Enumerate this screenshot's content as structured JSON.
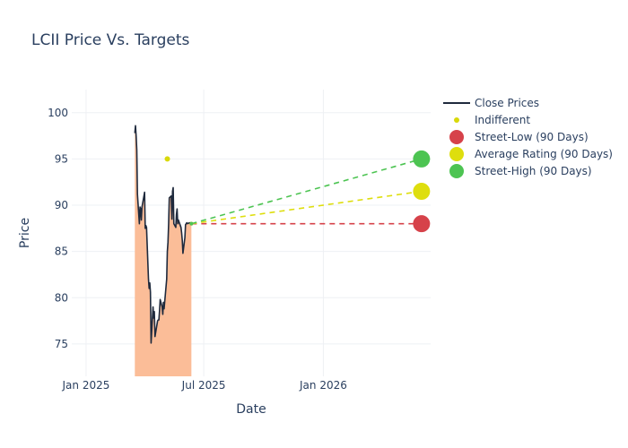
{
  "chart_data": {
    "type": "line",
    "title": "LCII Price Vs. Targets",
    "xlabel": "Date",
    "ylabel": "Price",
    "x_range": [
      "2024-12-10",
      "2026-06-15"
    ],
    "ylim": [
      71.5,
      102.5
    ],
    "x_ticks": [
      {
        "date": "2025-01-01",
        "label": "Jan 2025"
      },
      {
        "date": "2025-07-01",
        "label": "Jul 2025"
      },
      {
        "date": "2026-01-01",
        "label": "Jan 2026"
      }
    ],
    "y_ticks": [
      75,
      80,
      85,
      90,
      95,
      100
    ],
    "grid": true,
    "legend_position": "top-right",
    "close_prices": {
      "name": "Close Prices",
      "color": "#1f2a3d",
      "fill_color": "#fbbd98",
      "x": [
        "2025-03-17",
        "2025-03-18",
        "2025-03-19",
        "2025-03-20",
        "2025-03-21",
        "2025-03-24",
        "2025-03-25",
        "2025-03-26",
        "2025-03-27",
        "2025-03-28",
        "2025-03-31",
        "2025-04-01",
        "2025-04-02",
        "2025-04-03",
        "2025-04-04",
        "2025-04-07",
        "2025-04-08",
        "2025-04-09",
        "2025-04-10",
        "2025-04-11",
        "2025-04-14",
        "2025-04-15",
        "2025-04-16",
        "2025-04-17",
        "2025-04-21",
        "2025-04-22",
        "2025-04-23",
        "2025-04-24",
        "2025-04-25",
        "2025-04-28",
        "2025-04-29",
        "2025-04-30",
        "2025-05-01",
        "2025-05-02",
        "2025-05-05",
        "2025-05-06",
        "2025-05-07",
        "2025-05-08",
        "2025-05-09",
        "2025-05-12",
        "2025-05-13",
        "2025-05-14",
        "2025-05-15",
        "2025-05-16",
        "2025-05-19",
        "2025-05-20",
        "2025-05-21",
        "2025-05-22",
        "2025-05-23",
        "2025-05-27",
        "2025-05-28",
        "2025-05-29",
        "2025-05-30",
        "2025-06-02",
        "2025-06-03",
        "2025-06-04",
        "2025-06-05",
        "2025-06-06",
        "2025-06-09",
        "2025-06-10",
        "2025-06-11",
        "2025-06-12"
      ],
      "y": [
        97.8,
        98.6,
        97.5,
        96.0,
        91.2,
        88.0,
        89.8,
        89.6,
        88.4,
        89.8,
        91.0,
        91.4,
        87.5,
        87.8,
        87.6,
        82.0,
        81.0,
        81.6,
        80.6,
        75.1,
        79.0,
        77.8,
        78.5,
        75.8,
        77.5,
        77.6,
        77.6,
        78.6,
        79.8,
        79.0,
        78.2,
        79.5,
        78.8,
        79.6,
        82.0,
        85.0,
        86.0,
        88.0,
        90.8,
        91.0,
        88.5,
        91.5,
        91.9,
        88.0,
        87.6,
        89.0,
        89.6,
        88.0,
        88.4,
        87.6,
        87.0,
        86.2,
        84.8,
        86.5,
        87.9,
        88.0,
        88.1,
        88.0,
        88.1,
        88.1,
        88.0,
        88.1
      ]
    },
    "indifferent": {
      "name": "Indifferent",
      "color": "#d9d90a",
      "points": [
        {
          "x": "2025-05-06",
          "y": 95
        }
      ]
    },
    "targets": {
      "start": {
        "x": "2025-06-12",
        "y": 88
      },
      "end_date": "2026-06-01",
      "series": [
        {
          "name": "Street-Low (90 Days)",
          "value": 88,
          "color": "#d6424a"
        },
        {
          "name": "Average Rating (90 Days)",
          "value": 91.5,
          "color": "#dede0e"
        },
        {
          "name": "Street-High (90 Days)",
          "value": 95,
          "color": "#4dc452"
        }
      ]
    }
  }
}
